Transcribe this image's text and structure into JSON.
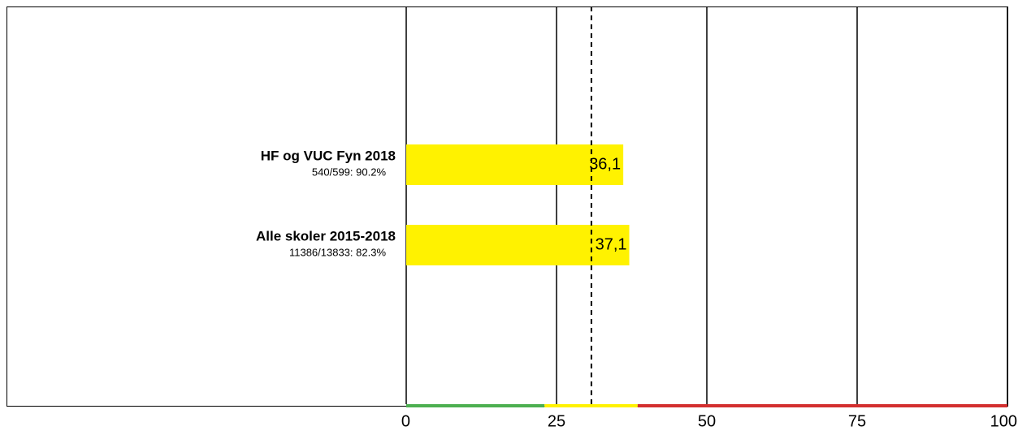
{
  "chart_data": {
    "type": "barh",
    "categories": [
      "HF og VUC Fyn 2018",
      "Alle skoler 2015-2018"
    ],
    "sublabels": [
      "540/599: 90.2%",
      "11386/13833: 82.3%"
    ],
    "values": [
      36.1,
      37.1
    ],
    "value_labels": [
      "36,1",
      "37,1"
    ],
    "color": "#fff200",
    "xlim": [
      0,
      100
    ],
    "xticks": [
      0,
      25,
      50,
      75,
      100
    ],
    "grid": true,
    "reference_line": 30.8,
    "bands": [
      {
        "from": 0,
        "to": 23,
        "color": "#4caf50"
      },
      {
        "from": 23,
        "to": 38.5,
        "color": "#fff200"
      },
      {
        "from": 38.5,
        "to": 100,
        "color": "#d32f2f"
      }
    ]
  }
}
